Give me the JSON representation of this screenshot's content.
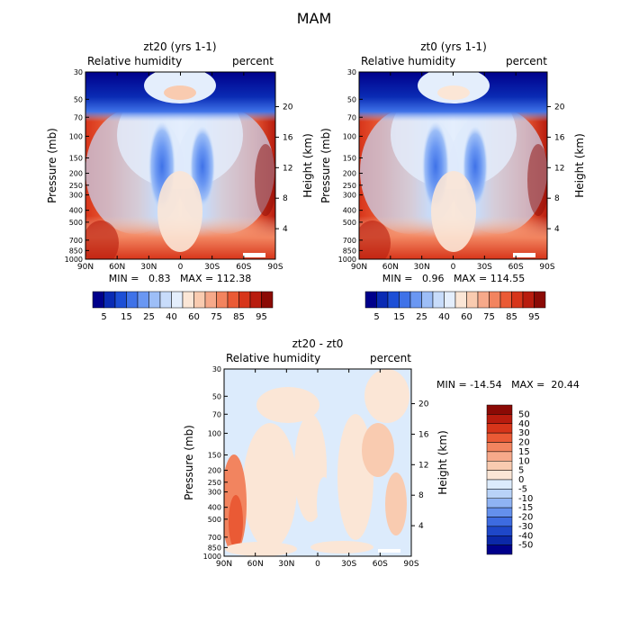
{
  "figure_title": "MAM",
  "chart_data": [
    {
      "type": "heatmap",
      "title": "zt20 (yrs 1-1)",
      "subtitle_left": "Relative humidity",
      "subtitle_right": "percent",
      "ylabel": "Pressure (mb)",
      "ylabel_right": "Height (km)",
      "x_ticks": [
        "90N",
        "60N",
        "30N",
        "0",
        "30S",
        "60S",
        "90S"
      ],
      "y_ticks": [
        "30",
        "50",
        "70",
        "100",
        "150",
        "200",
        "250",
        "300",
        "400",
        "500",
        "700",
        "850",
        "1000"
      ],
      "y_ticks_right": [
        "20",
        "16",
        "12",
        "8",
        "4"
      ],
      "stats_text": "MIN =   0.83   MAX = 112.38",
      "min": 0.83,
      "max": 112.38,
      "colorbar": {
        "orientation": "horizontal",
        "labels": [
          "5",
          "15",
          "25",
          "40",
          "60",
          "75",
          "85",
          "95"
        ],
        "colors": [
          "#00008b",
          "#0a2bb4",
          "#1d4fd6",
          "#3f72e8",
          "#6a97f2",
          "#9dbef7",
          "#c8dcfa",
          "#e4eefc",
          "#fbe6d6",
          "#f9cbb0",
          "#f6a98a",
          "#f2845f",
          "#ea5a35",
          "#d7351a",
          "#b81c0e",
          "#8b0a05"
        ]
      }
    },
    {
      "type": "heatmap",
      "title": "zt0 (yrs 1-1)",
      "subtitle_left": "Relative humidity",
      "subtitle_right": "percent",
      "ylabel": "Pressure (mb)",
      "ylabel_right": "Height (km)",
      "x_ticks": [
        "90N",
        "60N",
        "30N",
        "0",
        "30S",
        "60S",
        "90S"
      ],
      "y_ticks": [
        "30",
        "50",
        "70",
        "100",
        "150",
        "200",
        "250",
        "300",
        "400",
        "500",
        "700",
        "850",
        "1000"
      ],
      "y_ticks_right": [
        "20",
        "16",
        "12",
        "8",
        "4"
      ],
      "stats_text": "MIN =   0.96   MAX = 114.55",
      "min": 0.96,
      "max": 114.55,
      "colorbar": {
        "orientation": "horizontal",
        "labels": [
          "5",
          "15",
          "25",
          "40",
          "60",
          "75",
          "85",
          "95"
        ],
        "colors": [
          "#00008b",
          "#0a2bb4",
          "#1d4fd6",
          "#3f72e8",
          "#6a97f2",
          "#9dbef7",
          "#c8dcfa",
          "#e4eefc",
          "#fbe6d6",
          "#f9cbb0",
          "#f6a98a",
          "#f2845f",
          "#ea5a35",
          "#d7351a",
          "#b81c0e",
          "#8b0a05"
        ]
      }
    },
    {
      "type": "heatmap",
      "title": "zt20 - zt0",
      "subtitle_left": "Relative humidity",
      "subtitle_right": "percent",
      "ylabel": "Pressure (mb)",
      "ylabel_right": "Height (km)",
      "x_ticks": [
        "90N",
        "60N",
        "30N",
        "0",
        "30S",
        "60S",
        "90S"
      ],
      "y_ticks": [
        "30",
        "50",
        "70",
        "100",
        "150",
        "200",
        "250",
        "300",
        "400",
        "500",
        "700",
        "850",
        "1000"
      ],
      "y_ticks_right": [
        "20",
        "16",
        "12",
        "8",
        "4"
      ],
      "stats_text": "MIN = -14.54   MAX =  20.44",
      "min": -14.54,
      "max": 20.44,
      "colorbar": {
        "orientation": "vertical",
        "labels": [
          "50",
          "40",
          "30",
          "20",
          "15",
          "10",
          "5",
          "0",
          "-5",
          "-10",
          "-15",
          "-20",
          "-30",
          "-40",
          "-50"
        ],
        "colors": [
          "#8b0a05",
          "#b81c0e",
          "#d7351a",
          "#ea5a35",
          "#f2845f",
          "#f6a98a",
          "#f9cbb0",
          "#fbe6d6",
          "#dcebfc",
          "#b8d2f8",
          "#8fb3f3",
          "#6490ec",
          "#3d6be0",
          "#1e47c8",
          "#0b28a8",
          "#00008b"
        ]
      }
    }
  ]
}
